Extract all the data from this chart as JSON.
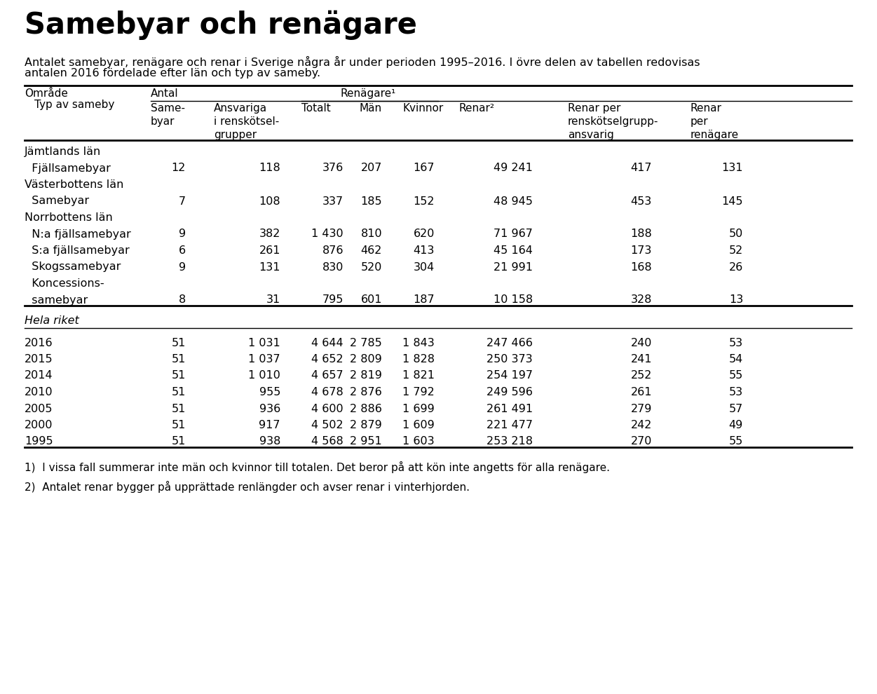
{
  "title": "Samebyar och renägare",
  "subtitle_line1": "Antalet samebyar, renägare och renar i Sverige några år under perioden 1995–2016. I övre delen av tabellen redovisas",
  "subtitle_line2": "antalen 2016 fördelade efter län och typ av sameby.",
  "section1_header": "Jämtlands län",
  "section1_rows": [
    [
      "  Fjällsamebyar",
      "12",
      "118",
      "376",
      "207",
      "167",
      "49 241",
      "417",
      "131"
    ]
  ],
  "section2_header": "Västerbottens län",
  "section2_rows": [
    [
      "  Samebyar",
      "7",
      "108",
      "337",
      "185",
      "152",
      "48 945",
      "453",
      "145"
    ]
  ],
  "section3_header": "Norrbottens län",
  "section3_rows": [
    [
      "  N:a fjällsamebyar",
      "9",
      "382",
      "1 430",
      "810",
      "620",
      "71 967",
      "188",
      "50"
    ],
    [
      "  S:a fjällsamebyar",
      "6",
      "261",
      "876",
      "462",
      "413",
      "45 164",
      "173",
      "52"
    ],
    [
      "  Skogssamebyar",
      "9",
      "131",
      "830",
      "520",
      "304",
      "21 991",
      "168",
      "26"
    ],
    [
      "  samebyar",
      "8",
      "31",
      "795",
      "601",
      "187",
      "10 158",
      "328",
      "13"
    ]
  ],
  "hela_riket_label": "Hela riket",
  "hela_riket_rows": [
    [
      "2016",
      "51",
      "1 031",
      "4 644",
      "2 785",
      "1 843",
      "247 466",
      "240",
      "53"
    ],
    [
      "2015",
      "51",
      "1 037",
      "4 652",
      "2 809",
      "1 828",
      "250 373",
      "241",
      "54"
    ],
    [
      "2014",
      "51",
      "1 010",
      "4 657",
      "2 819",
      "1 821",
      "254 197",
      "252",
      "55"
    ],
    [
      "2010",
      "51",
      "955",
      "4 678",
      "2 876",
      "1 792",
      "249 596",
      "261",
      "53"
    ],
    [
      "2005",
      "51",
      "936",
      "4 600",
      "2 886",
      "1 699",
      "261 491",
      "279",
      "57"
    ],
    [
      "2000",
      "51",
      "917",
      "4 502",
      "2 879",
      "1 609",
      "221 477",
      "242",
      "49"
    ],
    [
      "1995",
      "51",
      "938",
      "4 568",
      "2 951",
      "1 603",
      "253 218",
      "270",
      "55"
    ]
  ],
  "footnotes": [
    "1)  I vissa fall summerar inte män och kvinnor till totalen. Det beror på att kön inte angetts för alla renägare.",
    "2)  Antalet renar bygger på upprättade renlängder och avser renar i vinterhjorden."
  ],
  "background_color": "#ffffff",
  "text_color": "#000000",
  "koncessions_line1": "  Koncessions-",
  "koncessions_line2": "  samebyar"
}
